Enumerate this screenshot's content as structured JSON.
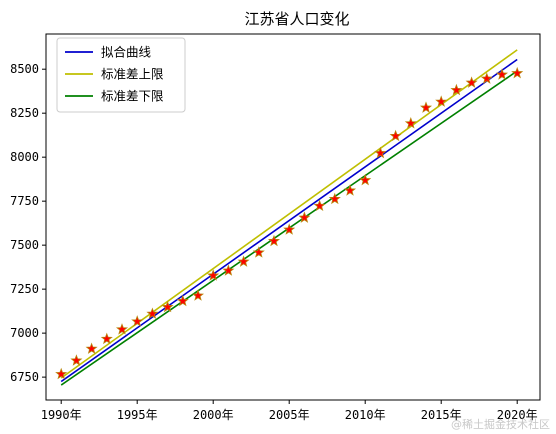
{
  "chart_data": {
    "type": "line",
    "title": "江苏省人口变化",
    "xlabel": "",
    "ylabel": "",
    "xlim": [
      1989,
      2021.5
    ],
    "ylim": [
      6620,
      8700
    ],
    "x_ticks": [
      {
        "value": 1990,
        "label": "1990年"
      },
      {
        "value": 1995,
        "label": "1995年"
      },
      {
        "value": 2000,
        "label": "2000年"
      },
      {
        "value": 2005,
        "label": "2005年"
      },
      {
        "value": 2010,
        "label": "2010年"
      },
      {
        "value": 2015,
        "label": "2015年"
      },
      {
        "value": 2020,
        "label": "2020年"
      }
    ],
    "y_ticks": [
      6750,
      7000,
      7250,
      7500,
      7750,
      8000,
      8250,
      8500
    ],
    "grid": false,
    "legend_position": "top-left",
    "series": [
      {
        "name": "拟合曲线",
        "kind": "line",
        "color": "#0000cc",
        "x": [
          1990,
          2020
        ],
        "y": [
          6725,
          8555
        ]
      },
      {
        "name": "标准差上限",
        "kind": "line",
        "color": "#bfbf00",
        "x": [
          1990,
          2020
        ],
        "y": [
          6745,
          8610
        ]
      },
      {
        "name": "标准差下限",
        "kind": "line",
        "color": "#008000",
        "x": [
          1990,
          2020
        ],
        "y": [
          6705,
          8490
        ]
      },
      {
        "name": "",
        "kind": "scatter",
        "marker": "star",
        "color": "#ff0000",
        "edge_color": "#b8860b",
        "x": [
          1990,
          1991,
          1992,
          1993,
          1994,
          1995,
          1996,
          1997,
          1998,
          1999,
          2000,
          2001,
          2002,
          2003,
          2004,
          2005,
          2006,
          2007,
          2008,
          2009,
          2010,
          2011,
          2012,
          2013,
          2014,
          2015,
          2016,
          2017,
          2018,
          2019,
          2020
        ],
        "y": [
          6767,
          6844,
          6911,
          6967,
          7021,
          7066,
          7110,
          7148,
          7182,
          7213,
          7327,
          7355,
          7406,
          7458,
          7523,
          7588,
          7656,
          7723,
          7762,
          7810,
          7869,
          8023,
          8120,
          8192,
          8281,
          8315,
          8381,
          8423,
          8446,
          8469,
          8477
        ]
      }
    ]
  },
  "watermark": "@稀土掘金技术社区"
}
